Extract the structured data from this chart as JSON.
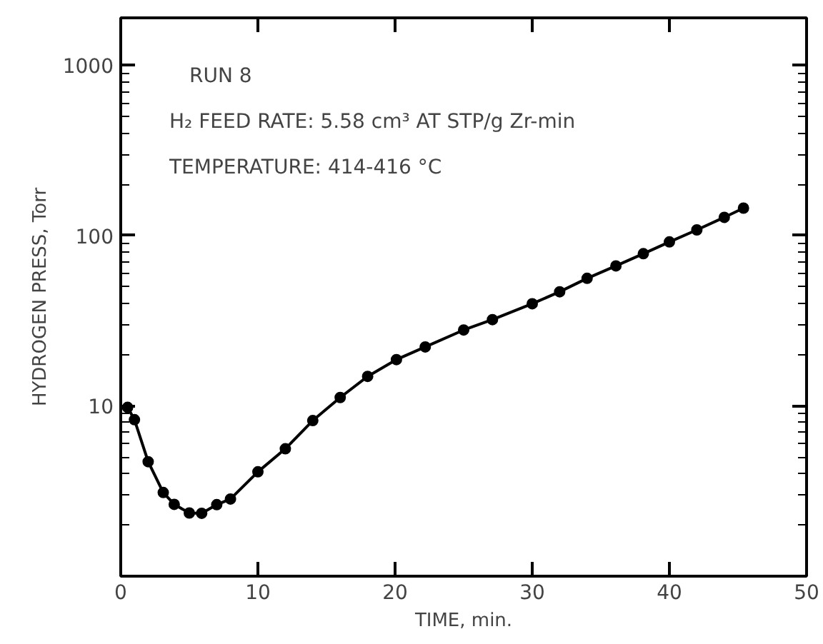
{
  "chart_data": {
    "type": "line",
    "xlabel": "TIME, min.",
    "ylabel": "HYDROGEN PRESS, Torr",
    "annotations": [
      "RUN 8",
      "H₂ FEED RATE: 5.58 cm³ AT STP/g Zr-min",
      "TEMPERATURE: 414-416 °C"
    ],
    "log": "y",
    "marker": "circle",
    "line_style": "solid",
    "grid": false,
    "xlim": [
      0,
      50
    ],
    "xticks": [
      0,
      10,
      20,
      30,
      40,
      50
    ],
    "ylim": [
      1,
      1900
    ],
    "yticks": [
      {
        "value": 2,
        "label": null
      },
      {
        "value": 3,
        "label": null
      },
      {
        "value": 4,
        "label": null
      },
      {
        "value": 5,
        "label": null
      },
      {
        "value": 6,
        "label": null
      },
      {
        "value": 7,
        "label": null
      },
      {
        "value": 8,
        "label": null
      },
      {
        "value": 9,
        "label": null
      },
      10,
      {
        "value": 20,
        "label": null
      },
      {
        "value": 30,
        "label": null
      },
      {
        "value": 40,
        "label": null
      },
      {
        "value": 50,
        "label": null
      },
      {
        "value": 60,
        "label": null
      },
      {
        "value": 70,
        "label": null
      },
      {
        "value": 80,
        "label": null
      },
      {
        "value": 90,
        "label": null
      },
      100,
      {
        "value": 200,
        "label": null
      },
      {
        "value": 300,
        "label": null
      },
      {
        "value": 400,
        "label": null
      },
      {
        "value": 500,
        "label": null
      },
      {
        "value": 600,
        "label": null
      },
      {
        "value": 700,
        "label": null
      },
      {
        "value": 800,
        "label": null
      },
      {
        "value": 900,
        "label": null
      },
      1000
    ],
    "x": [
      0.5,
      1.0,
      2.0,
      3.1,
      3.9,
      5.0,
      5.9,
      7.0,
      8.0,
      10.0,
      12.0,
      14.0,
      16.0,
      18.0,
      20.1,
      22.2,
      25.0,
      27.1,
      30.0,
      32.0,
      34.0,
      36.1,
      38.1,
      40.0,
      42.0,
      44.0,
      45.4
    ],
    "series": [
      {
        "color": "#000000",
        "values": [
          9.8,
          8.3,
          4.7,
          3.1,
          2.64,
          2.35,
          2.34,
          2.63,
          2.84,
          4.1,
          5.6,
          8.2,
          11.2,
          14.9,
          18.7,
          22.2,
          27.9,
          32.1,
          39.8,
          46.8,
          56.1,
          66.4,
          78.3,
          91.8,
          108,
          128,
          145
        ]
      }
    ]
  }
}
